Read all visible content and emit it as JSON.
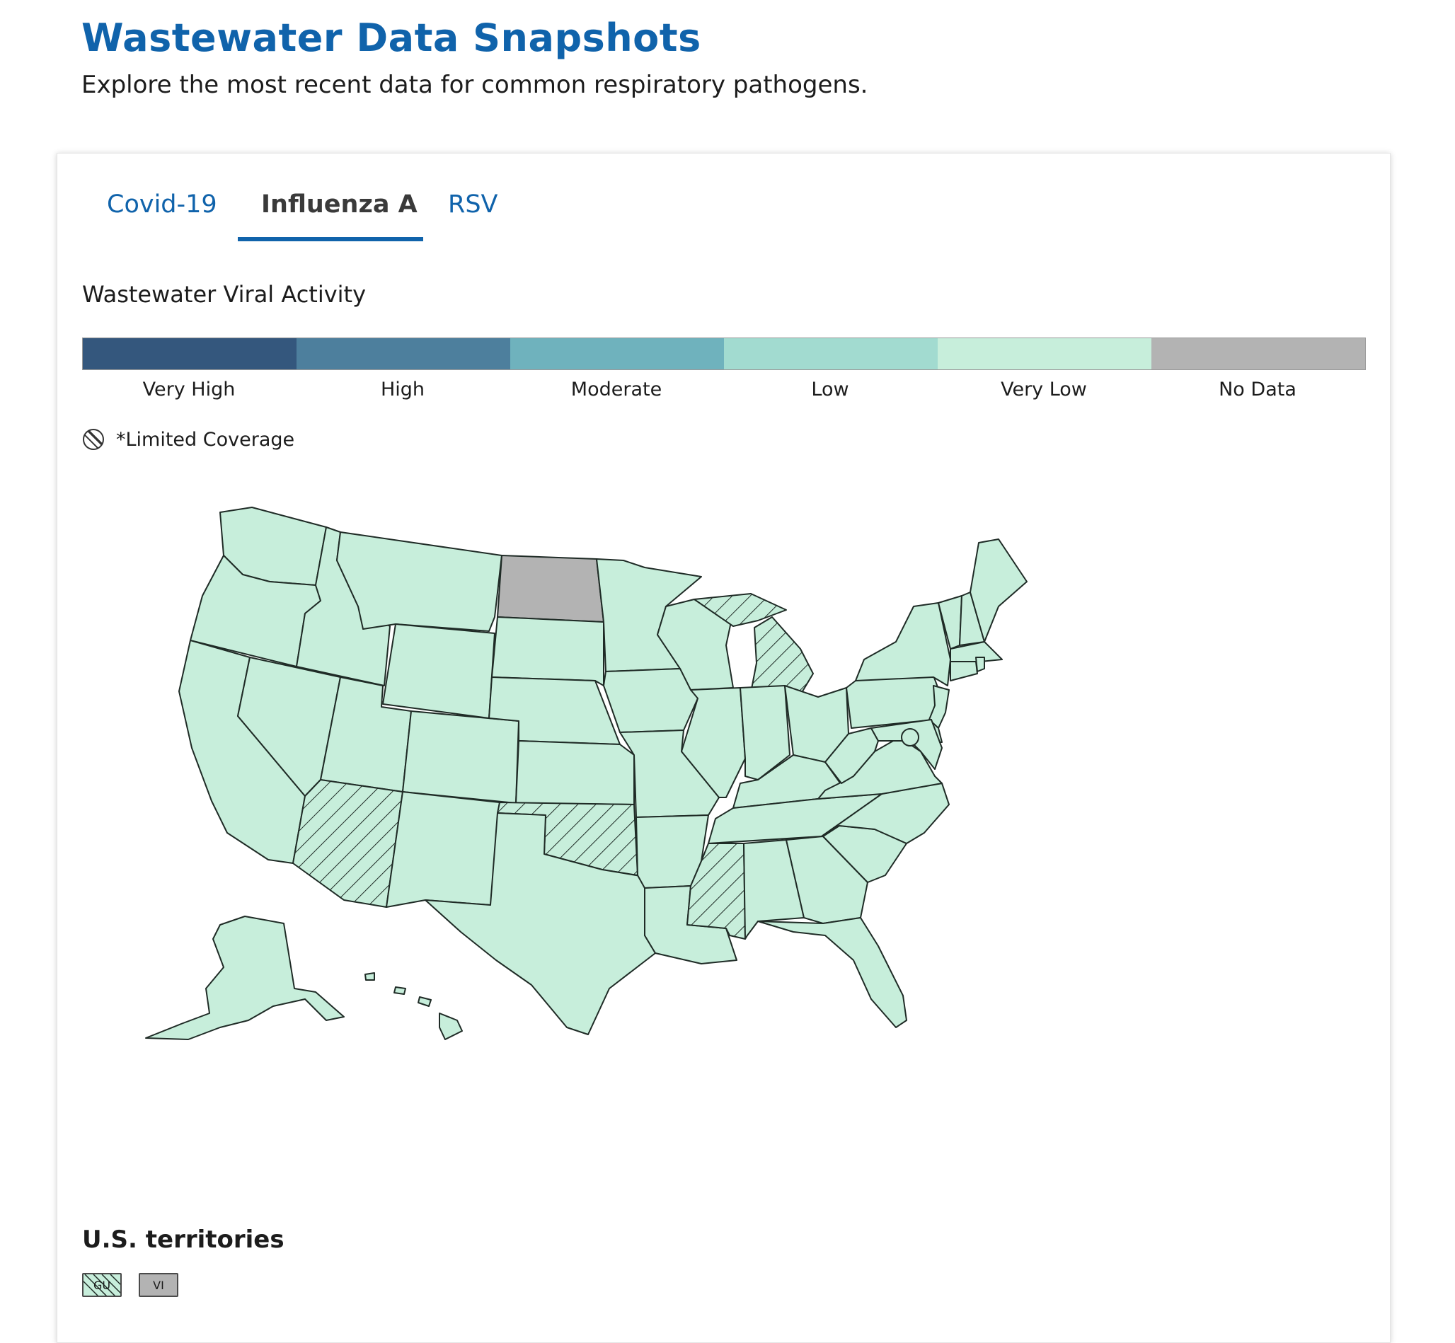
{
  "page": {
    "title": "Wastewater Data Snapshots",
    "subtitle": "Explore the most recent data for common respiratory pathogens."
  },
  "tabs": [
    {
      "label": "Covid-19",
      "active": false
    },
    {
      "label": "Influenza A",
      "active": true
    },
    {
      "label": "RSV",
      "active": false
    }
  ],
  "section": {
    "label": "Wastewater Viral Activity"
  },
  "legend": {
    "items": [
      {
        "label": "Very High",
        "color": "#34577d"
      },
      {
        "label": "High",
        "color": "#4d7f9d"
      },
      {
        "label": "Moderate",
        "color": "#6fb2bd"
      },
      {
        "label": "Low",
        "color": "#a2dbd0"
      },
      {
        "label": "Very Low",
        "color": "#c7eedb"
      },
      {
        "label": "No Data",
        "color": "#b3b3b3"
      }
    ],
    "limited_coverage_label": "*Limited Coverage"
  },
  "map": {
    "default_level": "Very Low",
    "no_data_states": [
      "North Dakota"
    ],
    "limited_coverage_states": [
      "Michigan",
      "Arizona",
      "Oklahoma",
      "Mississippi"
    ],
    "states": [
      "Washington",
      "Oregon",
      "California",
      "Nevada",
      "Idaho",
      "Montana",
      "Wyoming",
      "Utah",
      "Arizona",
      "Colorado",
      "New Mexico",
      "North Dakota",
      "South Dakota",
      "Nebraska",
      "Kansas",
      "Oklahoma",
      "Texas",
      "Minnesota",
      "Iowa",
      "Missouri",
      "Arkansas",
      "Louisiana",
      "Wisconsin",
      "Illinois",
      "Michigan",
      "Indiana",
      "Ohio",
      "Kentucky",
      "Tennessee",
      "Mississippi",
      "Alabama",
      "Georgia",
      "Florida",
      "South Carolina",
      "North Carolina",
      "Virginia",
      "West Virginia",
      "Pennsylvania",
      "New York",
      "Vermont",
      "New Hampshire",
      "Maine",
      "Massachusetts",
      "Connecticut",
      "Rhode Island",
      "New Jersey",
      "Delaware",
      "Maryland",
      "District of Columbia",
      "Alaska",
      "Hawaii"
    ]
  },
  "territories": {
    "title": "U.S. territories",
    "items": [
      {
        "code": "GU",
        "level": "Very Low",
        "limited_coverage": true
      },
      {
        "code": "VI",
        "level": "No Data",
        "limited_coverage": false
      }
    ]
  }
}
